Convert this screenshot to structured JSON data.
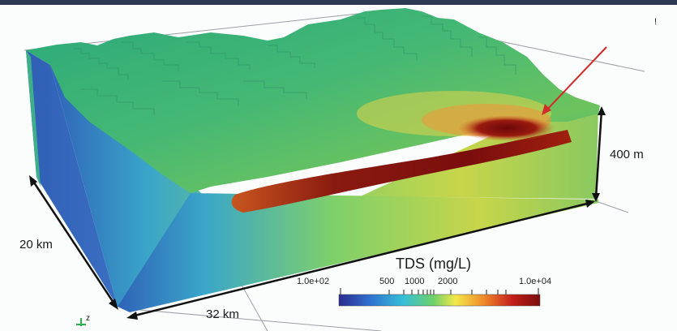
{
  "dimensions": {
    "depth": "20 km",
    "length": "32 km",
    "height": "400 m"
  },
  "axis_marker": "z",
  "colorbar": {
    "title": "TDS (mg/L)",
    "tick_labels": [
      "1.0e+02",
      "500",
      "1000",
      "2000",
      "1.0e+04"
    ],
    "colors": [
      "#2b2b8f",
      "#2f6fcf",
      "#36c0d8",
      "#6fd06a",
      "#f3e84a",
      "#f08a2b",
      "#c4201a",
      "#7a0d0d"
    ]
  },
  "arrow_color": "#d12a2a"
}
